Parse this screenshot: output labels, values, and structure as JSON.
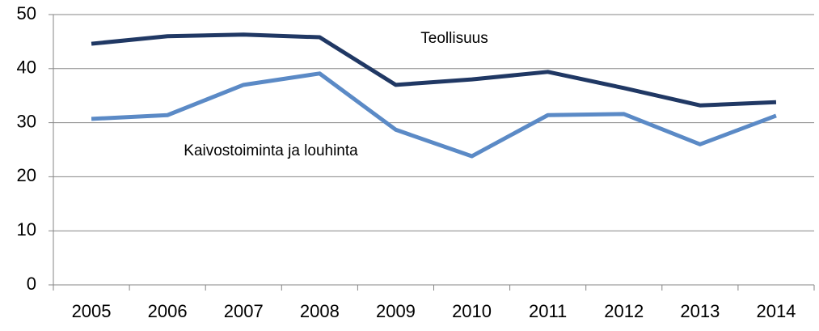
{
  "chart_data": {
    "type": "line",
    "categories": [
      "2005",
      "2006",
      "2007",
      "2008",
      "2009",
      "2010",
      "2011",
      "2012",
      "2013",
      "2014"
    ],
    "series": [
      {
        "name": "Teollisuus",
        "color": "#203864",
        "values": [
          44.6,
          46.0,
          46.3,
          45.8,
          37.0,
          38.0,
          39.4,
          36.4,
          33.2,
          33.8
        ]
      },
      {
        "name": "Kaivostoiminta ja louhinta",
        "color": "#5b8ac6",
        "values": [
          30.7,
          31.4,
          37.0,
          39.1,
          28.7,
          23.8,
          31.4,
          31.6,
          26.0,
          31.3
        ]
      }
    ],
    "ylim": [
      0,
      50
    ],
    "yticks": [
      0,
      10,
      20,
      30,
      40,
      50
    ],
    "grid": true
  }
}
